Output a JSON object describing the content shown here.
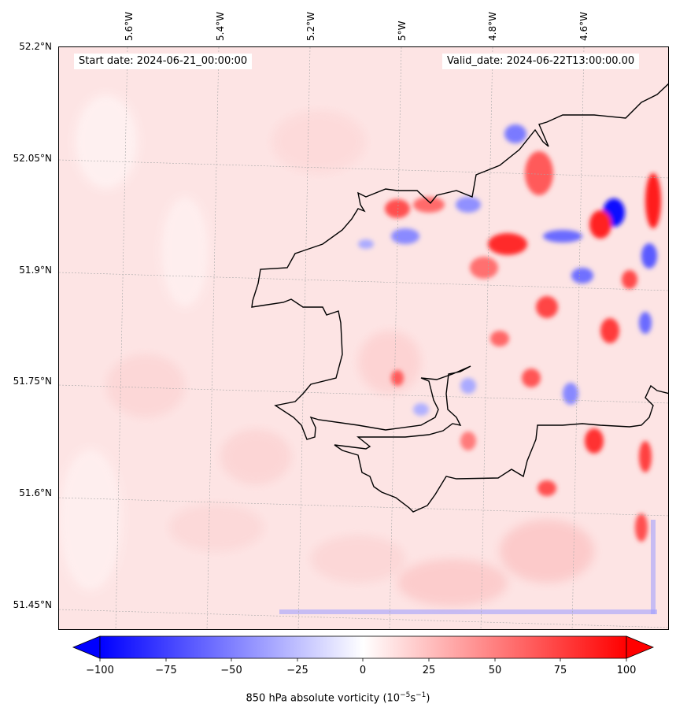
{
  "map": {
    "start_date": "Start date: 2024-06-21_00:00:00",
    "valid_date": "Valid_date: 2024-06-22T13:00:00.00",
    "longitude_labels": [
      "5.6°W",
      "5.4°W",
      "5.2°W",
      "5°W",
      "4.8°W",
      "4.6°W"
    ],
    "latitude_labels": [
      "52.2°N",
      "52.05°N",
      "51.9°N",
      "51.75°N",
      "51.6°N",
      "51.45°N"
    ],
    "colors": {
      "background": "#fde6e6",
      "coastline": "#000000",
      "positive": "#ff0000",
      "negative": "#0000ff",
      "gridline": "#b0b0b0"
    }
  },
  "colorbar": {
    "tick_labels": [
      "−100",
      "−75",
      "−50",
      "−25",
      "0",
      "25",
      "50",
      "75",
      "100"
    ],
    "title_prefix": "850 hPa absolute vorticity (10",
    "title_exp1": "−5",
    "title_mid": "s",
    "title_exp2": "−1",
    "title_suffix": ")",
    "colormap": "bwr",
    "range": [
      -100,
      100
    ]
  }
}
